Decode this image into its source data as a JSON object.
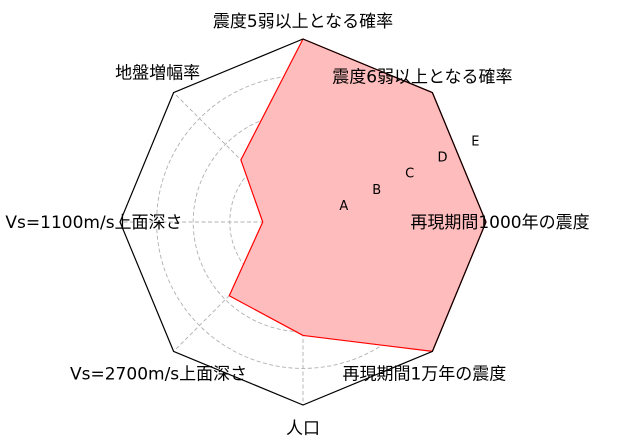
{
  "chart_data": {
    "type": "radar",
    "title": "",
    "axes": [
      "震度5弱以上となる確率",
      "震度6弱以上となる確率",
      "再現期間1000年の震度",
      "再現期間1万年の震度",
      "人口",
      "Vs=2700m/s上面深さ",
      "Vs=1100m/s上面深さ",
      "地盤増幅率"
    ],
    "ring_labels": [
      "A",
      "B",
      "C",
      "D",
      "E"
    ],
    "range": [
      0,
      5
    ],
    "grid": true,
    "series": [
      {
        "values": [
          5.0,
          5.0,
          5.0,
          5.0,
          3.1,
          2.85,
          1.1,
          2.4
        ],
        "color": "#ff0000",
        "fill": "#ffbcbc"
      }
    ],
    "outline_color": "#000000",
    "grid_color": "#b0b0b0"
  }
}
